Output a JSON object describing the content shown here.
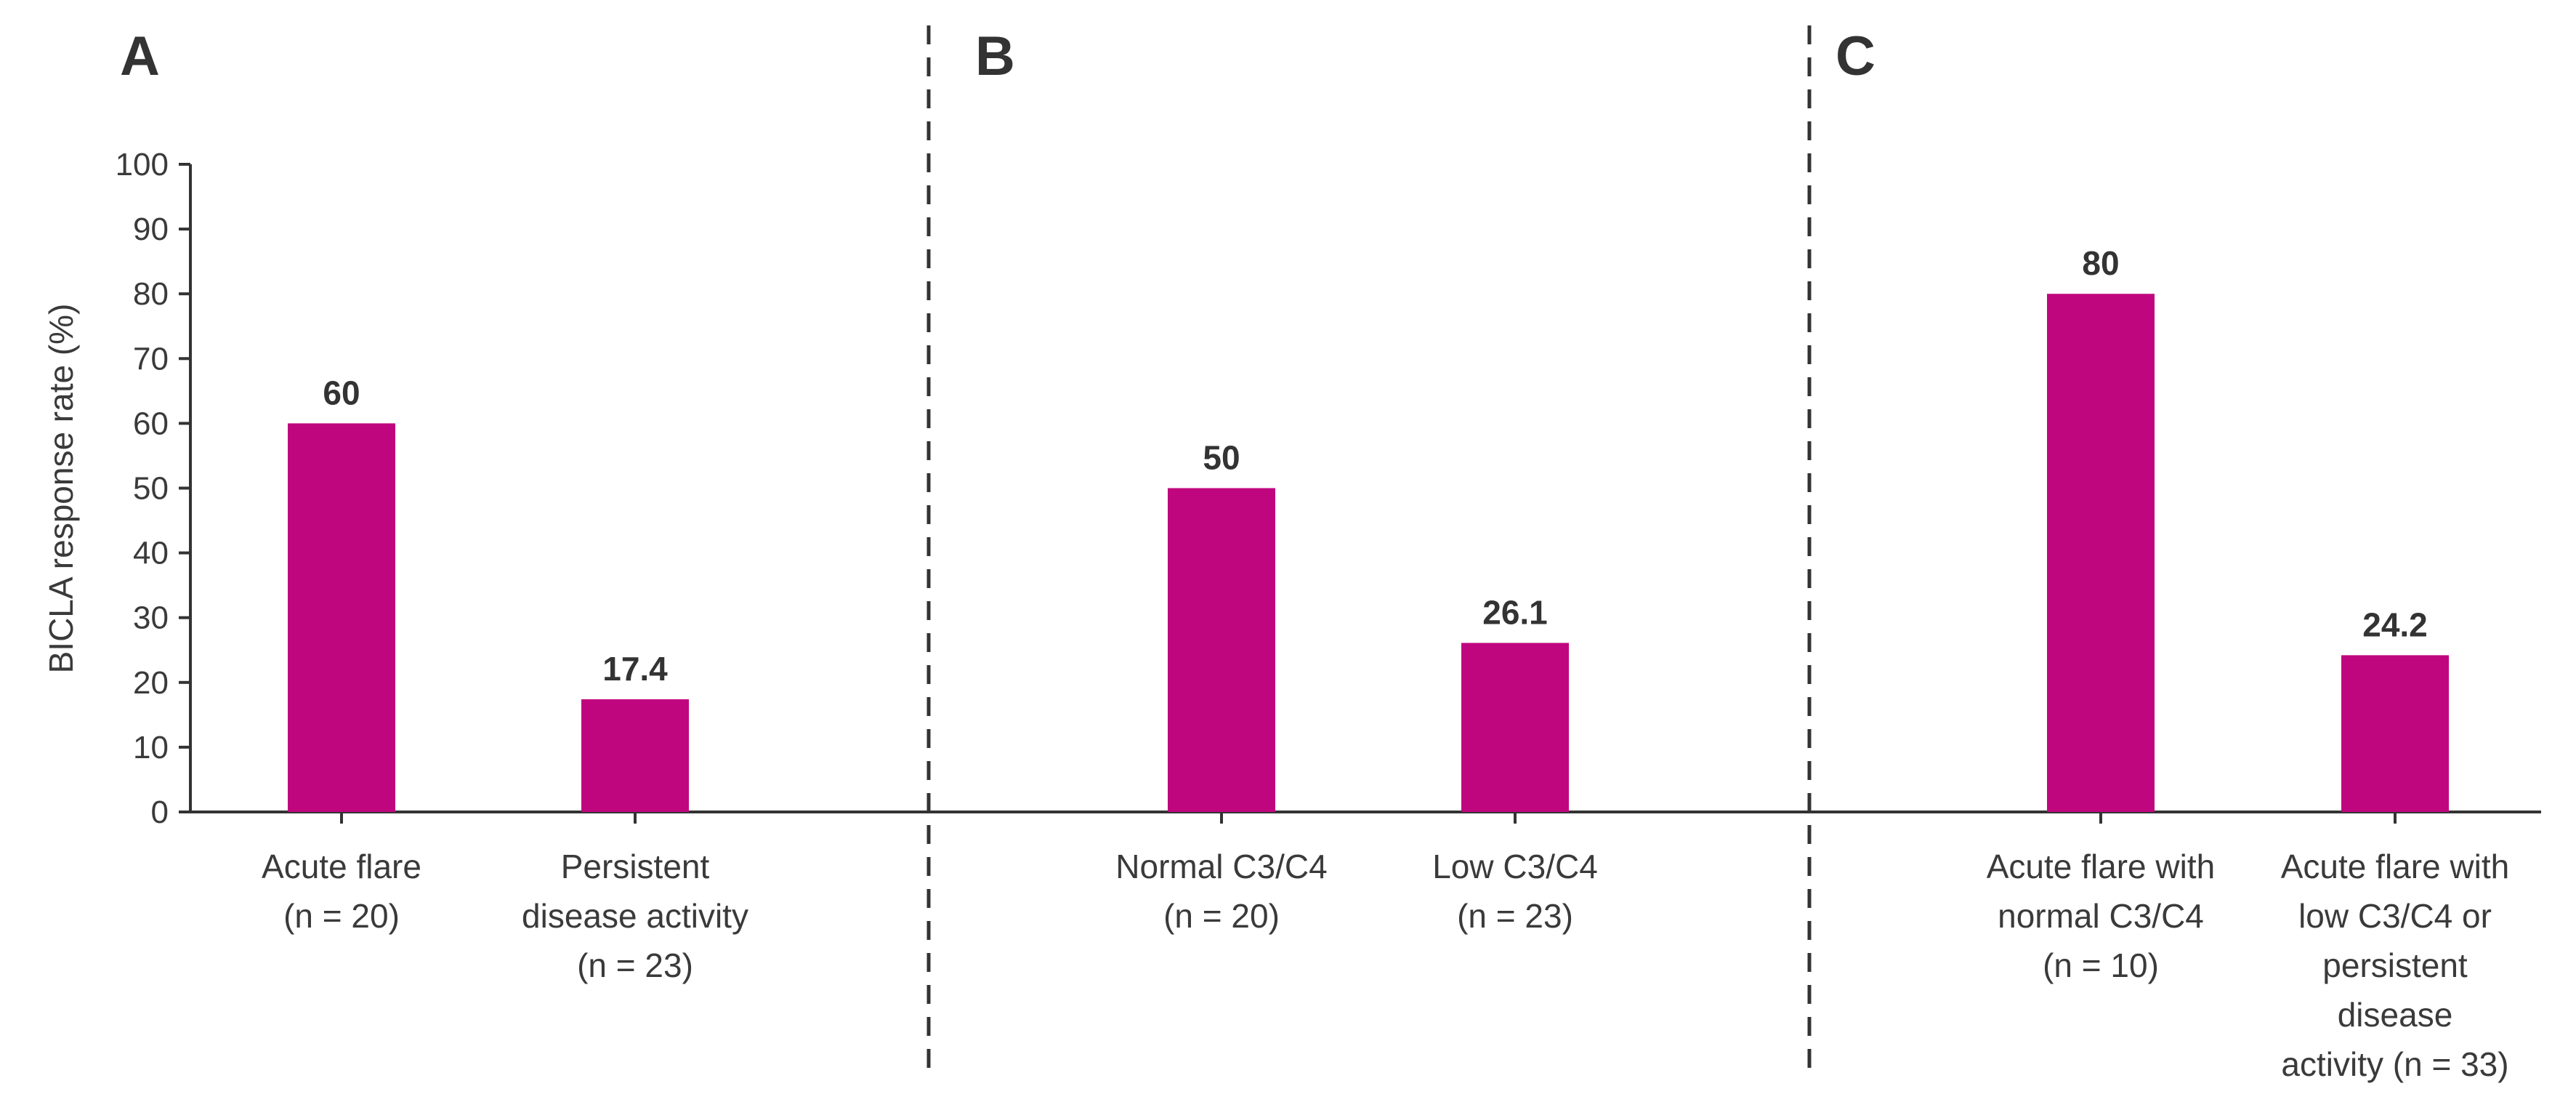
{
  "chart_data": {
    "type": "bar",
    "ylabel": "BICLA response rate (%)",
    "ylim": [
      0,
      100
    ],
    "yticks": [
      0,
      10,
      20,
      30,
      40,
      50,
      60,
      70,
      80,
      90,
      100
    ],
    "grid": false,
    "bar_color": "#c0067e",
    "panels": [
      {
        "label": "A",
        "categories": [
          [
            "Acute flare",
            "(n = 20)"
          ],
          [
            "Persistent",
            "disease activity",
            "(n = 23)"
          ]
        ],
        "values": [
          60,
          17.4
        ],
        "value_labels": [
          "60",
          "17.4"
        ]
      },
      {
        "label": "B",
        "categories": [
          [
            "Normal C3/C4",
            "(n = 20)"
          ],
          [
            "Low C3/C4",
            "(n = 23)"
          ]
        ],
        "values": [
          50,
          26.1
        ],
        "value_labels": [
          "50",
          "26.1"
        ]
      },
      {
        "label": "C",
        "categories": [
          [
            "Acute flare with",
            "normal C3/C4",
            "(n = 10)"
          ],
          [
            "Acute flare with",
            "low C3/C4 or",
            "persistent",
            "disease",
            "activity (n = 33)"
          ]
        ],
        "values": [
          80,
          24.2
        ],
        "value_labels": [
          "80",
          "24.2"
        ]
      }
    ]
  }
}
